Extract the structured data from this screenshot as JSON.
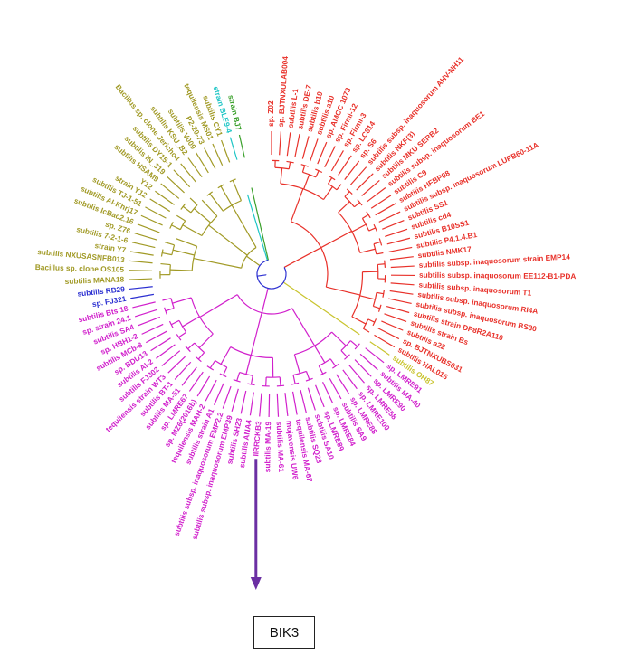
{
  "clades": [
    {
      "id": "red",
      "color": "#e8312a",
      "leaves": [
        "sp. Z02",
        "sp. BJTNXULAB004",
        "subtilis L-1",
        "subtilis DE-7",
        "subtilis b19",
        "subtilis a10",
        "sp. AMCC 1073",
        "sp. Firmi-12",
        "sp. Firmi-3",
        "sp. LC814",
        "sp. S6",
        "subtilis subsp. inaquosorum AHV-NH11",
        "subtilis NKF(3)",
        "subtilis MKU SERB2",
        "subtilis subsp. inaquosorum BE1",
        "subtilis C9",
        "subtilis HFBP08",
        "subtilis subsp. inaquosorum LUPB60-11A",
        "subtilis SS1",
        "subtilis cd4",
        "subtilis B10SS1",
        "subtilis P4.1.4.B1",
        "subtilis NMK17",
        "subtilis subsp. inaquosorum strain EMP14",
        "subtilis subsp. inaquosorum EE112-B1-PDA",
        "subtilis subsp. inaquosorum T1",
        "subtilis subsp. inaquosorum RI4A",
        "subtilis subsp. inaquosorum BS30",
        "subtilis strain DP8R2A110",
        "subtilis strain Bs",
        "subtilis a22",
        "sp. BJTNXUBS031",
        "subtilis HAL016"
      ]
    },
    {
      "id": "yellow",
      "color": "#c9c42e",
      "leaves": [
        "subtilis OH87"
      ]
    },
    {
      "id": "magenta",
      "color": "#d120cc",
      "leaves": [
        "sp. LMRE91",
        "subtilis MA-40",
        "sp. LMRE90",
        "sp. LMRE58",
        "sp. LMRE100",
        "sp. LMRE88",
        "subtilis SA9",
        "sp. LMRE84",
        "sp. LMRE89",
        "subtilis SA10",
        "subtilis SQ23",
        "tequilensis MA-67",
        "mojavensis UW6",
        "subtilis MA-61",
        "subtilis MA-19",
        "IIRRCKB3",
        "subtilis ANA4",
        "subtilis SH23",
        "subtilis subsp. inaquosorum EMP39",
        "subtilis subsp. inaquosorum EMP2.2",
        "subtilis strain A1",
        "tequilensis MAH-2",
        "sp. MZ6(2016b)",
        "sp. LMRE67",
        "subtilis MA-51",
        "subtilis BT-1",
        "tequilensis strain WT3",
        "subtilis FJ302",
        "subtilis AI-2",
        "sp. BDU13",
        "subtilis MCb-8",
        "sp. HBH1-2",
        "subtilis SA4",
        "sp. strain 24.1",
        "subtilis Bts 18"
      ]
    },
    {
      "id": "blue",
      "color": "#2b2fd1",
      "leaves": [
        "sp. FJ321",
        "subtilis RB29"
      ]
    },
    {
      "id": "olive",
      "color": "#a19a26",
      "leaves": [
        "subtilis MANA18",
        "Bacillus sp. clone OS105",
        "subtilis NXUSASNFB013",
        "strain Y7",
        "subtilis 7-2-1-6",
        "sp. Z76",
        "subtilis IcBac2.16",
        "subtilis AI-Khrj17",
        "subtilis TJ-1-51",
        "strain Y12",
        "Y12",
        "subtilis HSAM9",
        "subtilis IN_319",
        "subtilis DY15-1",
        "Bacillus sp. clone Jericho4",
        "subtilis KSU_B2",
        "subtilis V009",
        "P2-20-73",
        "tequilensis MS01",
        "subtilis CY1"
      ]
    },
    {
      "id": "cyan",
      "color": "#1fc6c6",
      "leaves": [
        "strain BLE9-4"
      ]
    },
    {
      "id": "green",
      "color": "#3aa02b",
      "leaves": [
        "strain BJ7"
      ]
    }
  ],
  "highlight": {
    "leaf": "IIRRCKB3",
    "label": "BIK3",
    "arrow_color": "#6b2fa3"
  }
}
